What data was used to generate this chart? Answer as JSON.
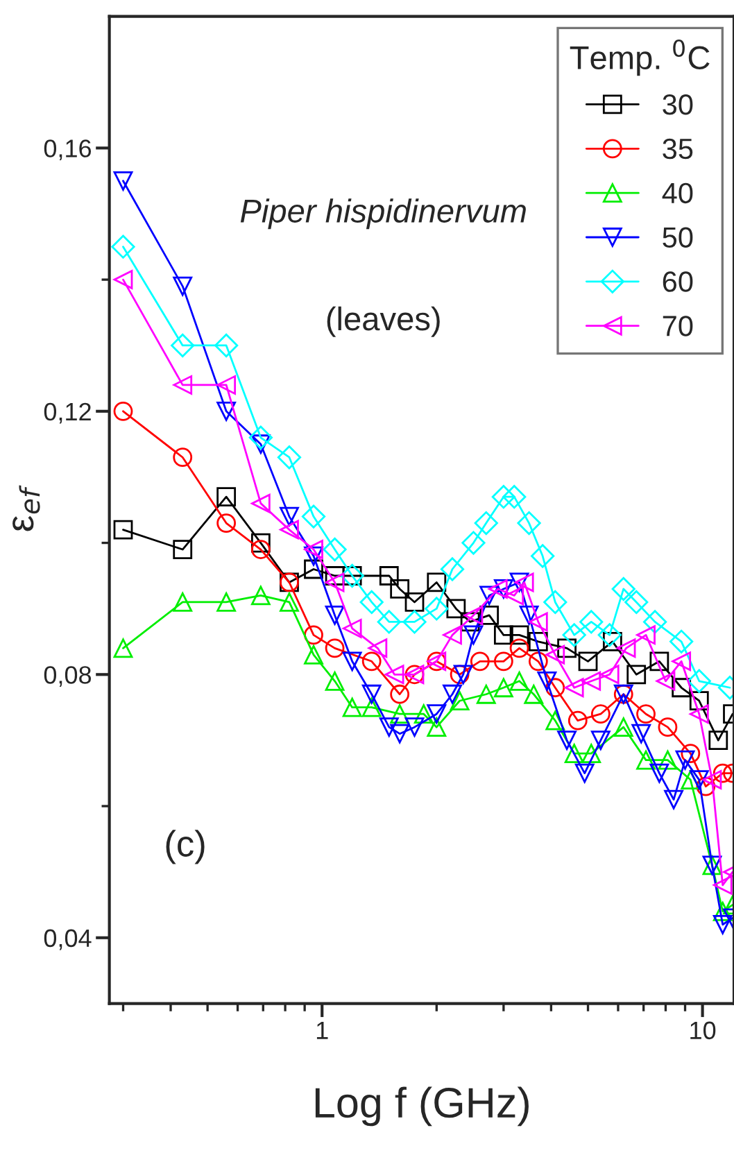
{
  "chart_data": {
    "type": "line",
    "xlabel": "Log f (GHz)",
    "ylabel": "ε$_{ef}$",
    "legend_title": "Temp. $^{0}$C",
    "legend": "top right",
    "grid": false,
    "log": "x",
    "xlim": [
      0.276,
      12.1
    ],
    "ylim": [
      0.03,
      0.18
    ],
    "xticks": [
      {
        "value": 0.3,
        "label": null
      },
      {
        "value": 0.4,
        "label": null
      },
      {
        "value": 0.5,
        "label": null
      },
      {
        "value": 0.6,
        "label": null
      },
      {
        "value": 0.7,
        "label": null
      },
      {
        "value": 0.8,
        "label": null
      },
      {
        "value": 0.9,
        "label": null
      },
      1,
      {
        "value": 2,
        "label": null
      },
      {
        "value": 3,
        "label": null
      },
      {
        "value": 4,
        "label": null
      },
      {
        "value": 5,
        "label": null
      },
      {
        "value": 6,
        "label": null
      },
      {
        "value": 7,
        "label": null
      },
      {
        "value": 8,
        "label": null
      },
      {
        "value": 9,
        "label": null
      },
      10
    ],
    "yticks": [
      {
        "value": 0.04,
        "label": "0,04"
      },
      {
        "value": 0.06,
        "label": null
      },
      {
        "value": 0.08,
        "label": "0,08"
      },
      {
        "value": 0.1,
        "label": null
      },
      {
        "value": 0.12,
        "label": "0,12"
      },
      {
        "value": 0.14,
        "label": null
      },
      {
        "value": 0.16,
        "label": "0,16"
      }
    ],
    "annotations": [
      "Piper hispidinervum",
      "(leaves)",
      "(c)"
    ],
    "series": [
      {
        "name": "30",
        "color": "#000000",
        "marker": "square",
        "x": [
          0.3,
          0.43,
          0.56,
          0.69,
          0.82,
          0.95,
          1.08,
          1.2,
          1.5,
          1.6,
          1.75,
          2.0,
          2.25,
          2.45,
          2.75,
          3.0,
          3.3,
          3.7,
          4.4,
          5.0,
          5.8,
          6.7,
          7.7,
          8.8,
          9.8,
          11.0,
          12.0
        ],
        "values": [
          0.102,
          0.099,
          0.107,
          0.1,
          0.094,
          0.096,
          0.095,
          0.095,
          0.095,
          0.093,
          0.091,
          0.094,
          0.09,
          0.088,
          0.089,
          0.086,
          0.086,
          0.085,
          0.084,
          0.082,
          0.085,
          0.08,
          0.082,
          0.078,
          0.076,
          0.07,
          0.074
        ]
      },
      {
        "name": "35",
        "color": "#ff0000",
        "marker": "circle",
        "x": [
          0.3,
          0.43,
          0.56,
          0.69,
          0.82,
          0.95,
          1.08,
          1.35,
          1.6,
          1.75,
          2.0,
          2.3,
          2.6,
          3.0,
          3.3,
          3.7,
          4.1,
          4.7,
          5.4,
          6.2,
          7.1,
          8.1,
          9.3,
          10.2,
          11.3,
          12.0
        ],
        "values": [
          0.12,
          0.113,
          0.103,
          0.099,
          0.094,
          0.086,
          0.084,
          0.082,
          0.077,
          0.08,
          0.082,
          0.08,
          0.082,
          0.082,
          0.084,
          0.082,
          0.078,
          0.073,
          0.074,
          0.077,
          0.074,
          0.072,
          0.068,
          0.063,
          0.065,
          0.065
        ]
      },
      {
        "name": "40",
        "color": "#00ee00",
        "marker": "triangle",
        "x": [
          0.3,
          0.43,
          0.56,
          0.69,
          0.82,
          0.95,
          1.08,
          1.2,
          1.35,
          1.6,
          1.85,
          2.0,
          2.3,
          2.7,
          3.0,
          3.3,
          3.6,
          4.1,
          4.6,
          5.1,
          6.2,
          7.1,
          8.1,
          9.3,
          10.6,
          11.3,
          12.0
        ],
        "values": [
          0.084,
          0.091,
          0.091,
          0.092,
          0.091,
          0.083,
          0.079,
          0.075,
          0.075,
          0.074,
          0.074,
          0.072,
          0.076,
          0.077,
          0.078,
          0.079,
          0.077,
          0.073,
          0.068,
          0.068,
          0.072,
          0.067,
          0.067,
          0.064,
          0.051,
          0.044,
          0.045
        ]
      },
      {
        "name": "50",
        "color": "#0000ff",
        "marker": "triangle_down",
        "x": [
          0.3,
          0.43,
          0.56,
          0.69,
          0.82,
          0.95,
          1.08,
          1.2,
          1.35,
          1.5,
          1.6,
          1.75,
          2.0,
          2.2,
          2.35,
          2.5,
          2.75,
          3.0,
          3.3,
          3.5,
          3.9,
          4.4,
          4.9,
          5.4,
          6.2,
          6.9,
          7.7,
          8.4,
          9.0,
          9.8,
          10.6,
          11.3,
          12.0
        ],
        "values": [
          0.155,
          0.139,
          0.12,
          0.115,
          0.104,
          0.098,
          0.089,
          0.082,
          0.077,
          0.072,
          0.071,
          0.072,
          0.074,
          0.077,
          0.08,
          0.086,
          0.092,
          0.093,
          0.094,
          0.089,
          0.079,
          0.07,
          0.065,
          0.07,
          0.077,
          0.071,
          0.065,
          0.061,
          0.067,
          0.064,
          0.051,
          0.042,
          0.043
        ]
      },
      {
        "name": "60",
        "color": "#00ffff",
        "marker": "diamond",
        "x": [
          0.3,
          0.43,
          0.56,
          0.69,
          0.82,
          0.95,
          1.08,
          1.2,
          1.35,
          1.5,
          1.75,
          2.0,
          2.2,
          2.5,
          2.7,
          3.0,
          3.2,
          3.5,
          3.8,
          4.1,
          4.6,
          5.1,
          5.7,
          6.2,
          6.7,
          7.5,
          8.8,
          9.8,
          11.8
        ],
        "values": [
          0.145,
          0.13,
          0.13,
          0.116,
          0.113,
          0.104,
          0.099,
          0.095,
          0.091,
          0.088,
          0.088,
          0.09,
          0.096,
          0.1,
          0.103,
          0.107,
          0.107,
          0.103,
          0.098,
          0.091,
          0.086,
          0.088,
          0.086,
          0.093,
          0.091,
          0.088,
          0.085,
          0.079,
          0.078
        ]
      },
      {
        "name": "70",
        "color": "#ff00ff",
        "marker": "triangle_left",
        "x": [
          0.3,
          0.43,
          0.56,
          0.69,
          0.82,
          0.95,
          1.08,
          1.2,
          1.4,
          1.55,
          1.75,
          2.0,
          2.2,
          2.5,
          2.9,
          3.2,
          3.4,
          3.7,
          4.1,
          4.6,
          5.1,
          5.7,
          6.3,
          7.1,
          8.0,
          8.8,
          9.8,
          10.6,
          11.3,
          12.0
        ],
        "values": [
          0.14,
          0.124,
          0.124,
          0.106,
          0.102,
          0.099,
          0.094,
          0.087,
          0.084,
          0.08,
          0.08,
          0.082,
          0.086,
          0.089,
          0.093,
          0.092,
          0.094,
          0.088,
          0.083,
          0.078,
          0.079,
          0.08,
          0.084,
          0.086,
          0.079,
          0.082,
          0.074,
          0.064,
          0.048,
          0.05
        ]
      }
    ]
  }
}
